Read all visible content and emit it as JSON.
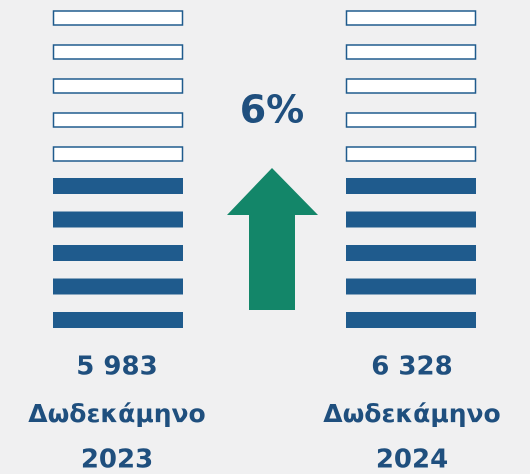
{
  "change": "6%",
  "periods": [
    {
      "value": "5 983",
      "label": "Δωδεκάμηνο",
      "year": "2023"
    },
    {
      "value": "6 328",
      "label": "Δωδεκάμηνο",
      "year": "2024"
    }
  ]
}
